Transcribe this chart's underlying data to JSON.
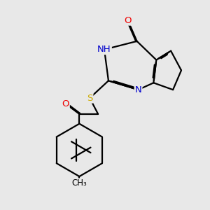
{
  "bg": "#e8e8e8",
  "lc": "#000000",
  "lw": 1.6,
  "colors": {
    "N": "#0000cc",
    "O": "#ee0000",
    "S": "#ccaa00",
    "C": "#000000"
  },
  "fs": 9.5,
  "dbl_sep": 0.055
}
